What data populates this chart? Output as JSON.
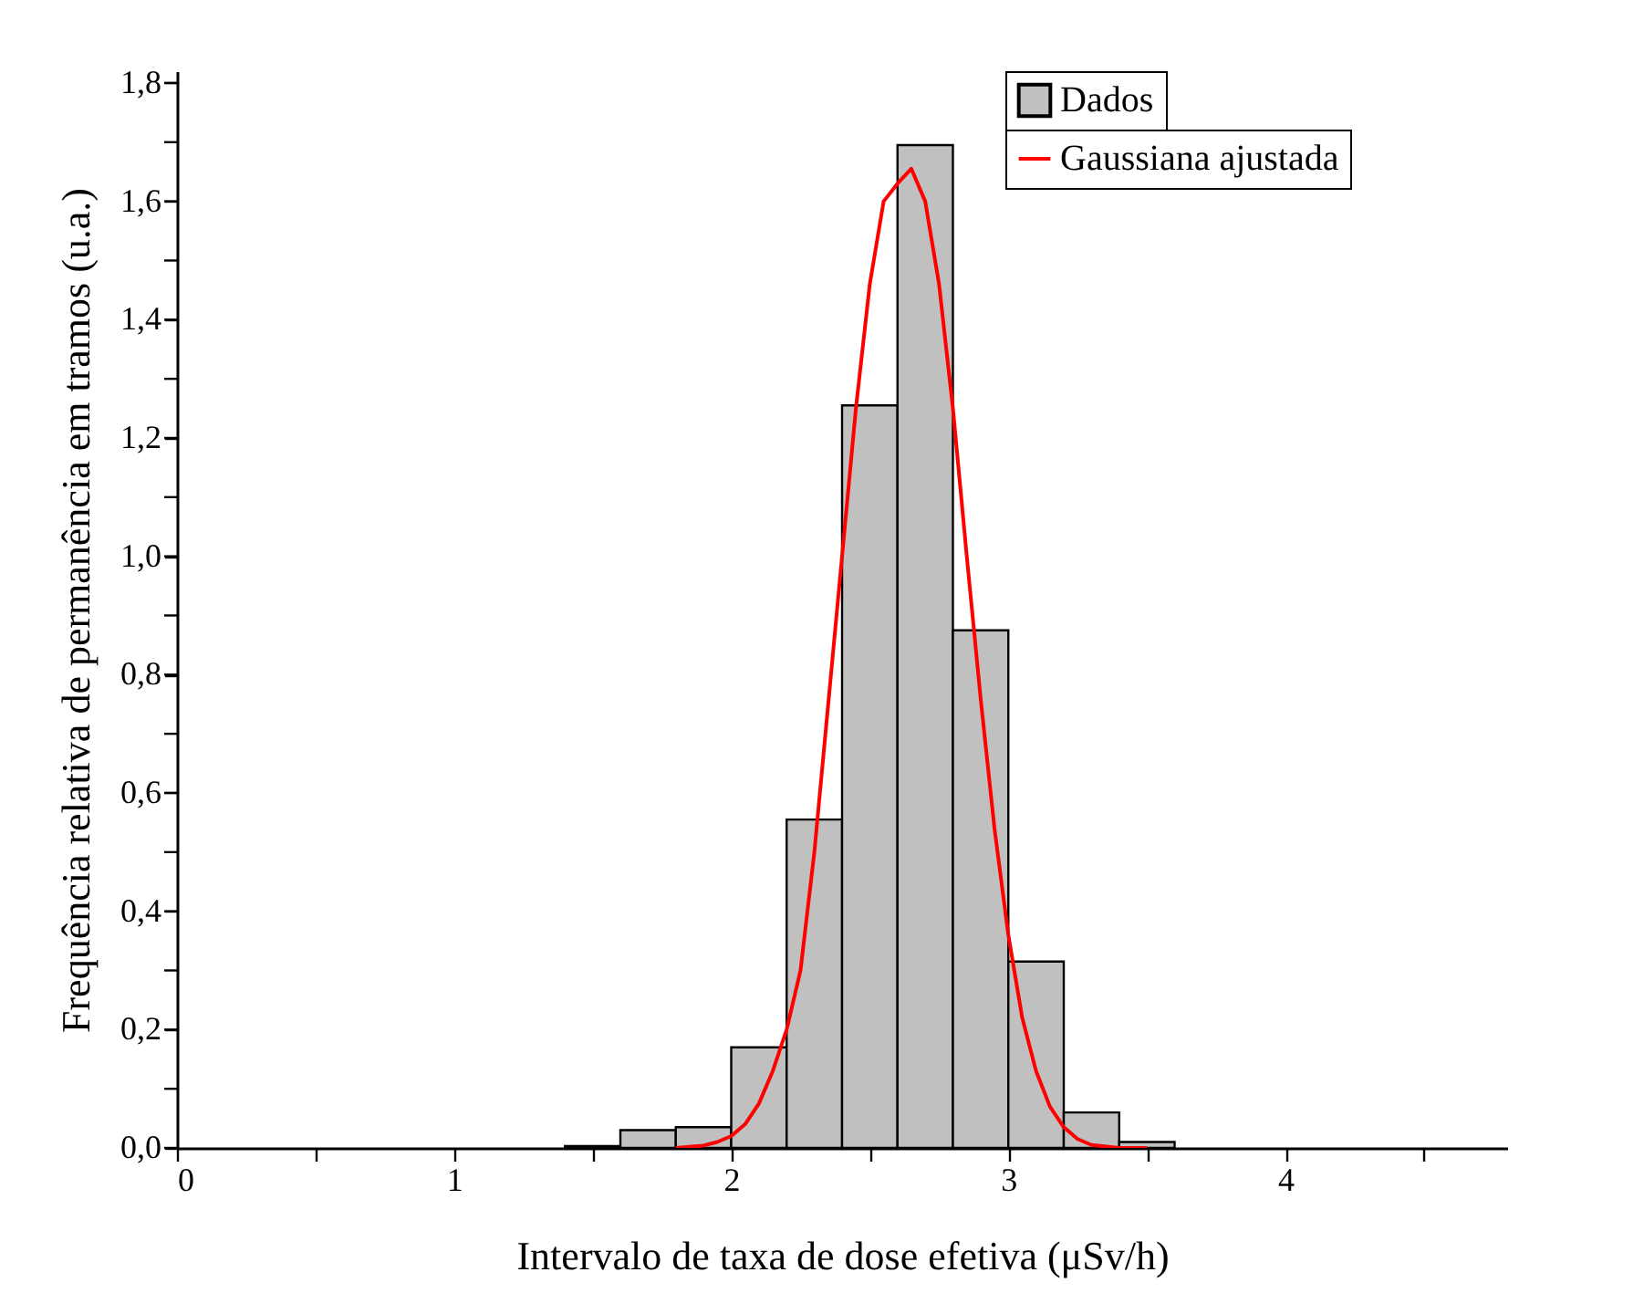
{
  "chart_data": {
    "type": "histogram",
    "xlabel": "Intervalo de taxa de dose efetiva (μSv/h)",
    "ylabel": "Frequência relativa de permanência em tramos (u.a.)",
    "bins": [
      1.4,
      1.6,
      1.8,
      2.0,
      2.2,
      2.4,
      2.6,
      2.8,
      3.0,
      3.2,
      3.4,
      3.6
    ],
    "series": [
      {
        "name": "Dados",
        "color": "#c0c0c0",
        "values": [
          0.003,
          0.03,
          0.035,
          0.17,
          0.555,
          1.255,
          1.695,
          0.875,
          0.315,
          0.06,
          0.01
        ]
      },
      {
        "name": "Gaussiana ajustada",
        "type": "line",
        "color": "#ff0000",
        "x": [
          1.8,
          1.9,
          1.95,
          2.0,
          2.05,
          2.1,
          2.15,
          2.2,
          2.25,
          2.3,
          2.35,
          2.4,
          2.45,
          2.5,
          2.55,
          2.6,
          2.65,
          2.7,
          2.75,
          2.8,
          2.85,
          2.9,
          2.95,
          3.0,
          3.05,
          3.1,
          3.15,
          3.2,
          3.25,
          3.3,
          3.4,
          3.5
        ],
        "values": [
          0.0,
          0.004,
          0.01,
          0.02,
          0.04,
          0.075,
          0.13,
          0.2,
          0.3,
          0.5,
          0.75,
          1.0,
          1.25,
          1.46,
          1.6,
          1.63,
          1.655,
          1.6,
          1.46,
          1.25,
          1.0,
          0.76,
          0.54,
          0.36,
          0.22,
          0.13,
          0.07,
          0.035,
          0.015,
          0.005,
          0.0,
          0.0
        ]
      }
    ],
    "xlim": [
      0,
      4.8
    ],
    "xticks": [
      0,
      {
        "value": 0.5,
        "label": null
      },
      1,
      {
        "value": 1.5,
        "label": null
      },
      2,
      {
        "value": 2.5,
        "label": null
      },
      3,
      {
        "value": 3.5,
        "label": null
      },
      4,
      {
        "value": 4.5,
        "label": null
      }
    ],
    "ylim": [
      0,
      1.82
    ],
    "yticks": [
      {
        "value": 0,
        "label": "0,0"
      },
      {
        "value": 0.1,
        "label": null
      },
      {
        "value": 0.2,
        "label": "0,2"
      },
      {
        "value": 0.3,
        "label": null
      },
      {
        "value": 0.4,
        "label": "0,4"
      },
      {
        "value": 0.5,
        "label": null
      },
      {
        "value": 0.6,
        "label": "0,6"
      },
      {
        "value": 0.7,
        "label": null
      },
      {
        "value": 0.8,
        "label": "0,8"
      },
      {
        "value": 0.9,
        "label": null
      },
      {
        "value": 1.0,
        "label": "1,0"
      },
      {
        "value": 1.1,
        "label": null
      },
      {
        "value": 1.2,
        "label": "1,2"
      },
      {
        "value": 1.3,
        "label": null
      },
      {
        "value": 1.4,
        "label": "1,4"
      },
      {
        "value": 1.5,
        "label": null
      },
      {
        "value": 1.6,
        "label": "1,6"
      },
      {
        "value": 1.7,
        "label": null
      },
      {
        "value": 1.8,
        "label": "1,8"
      }
    ],
    "grid": false,
    "legend": "top right"
  }
}
